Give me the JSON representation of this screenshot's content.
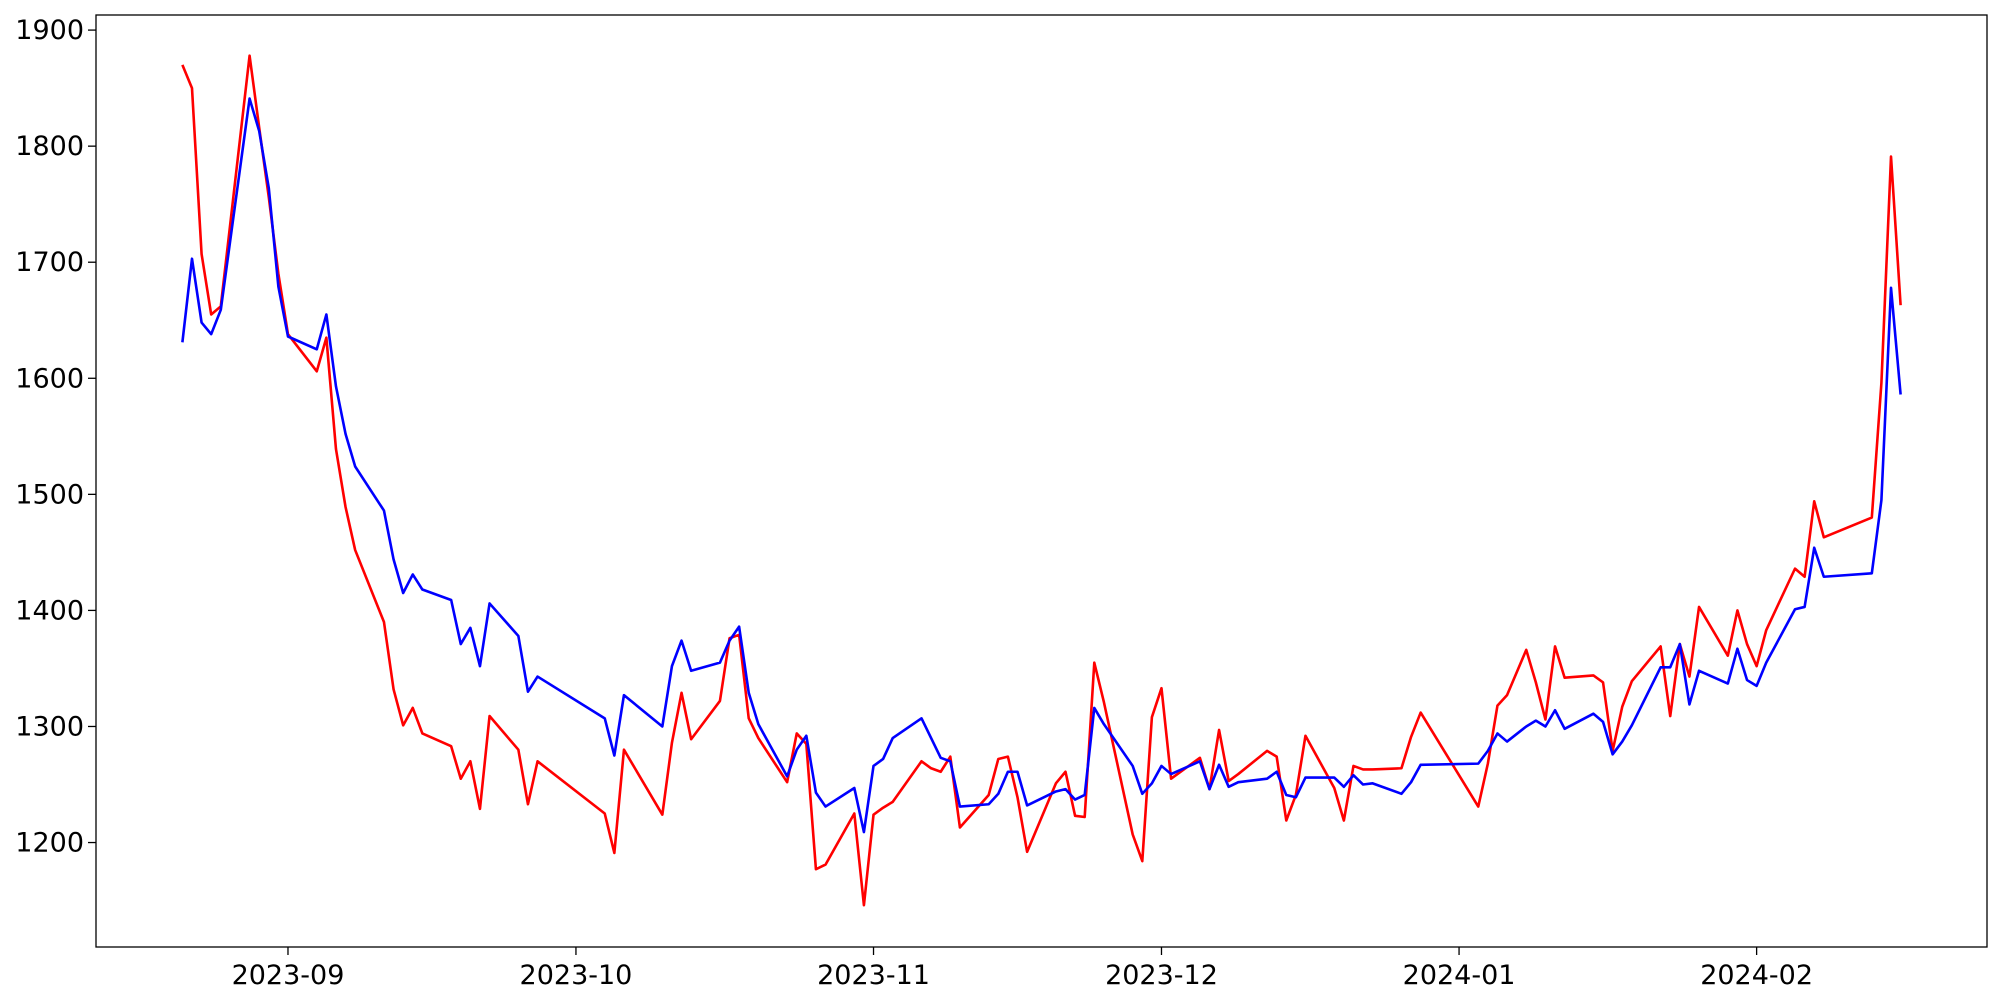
{
  "chart_data": {
    "type": "line",
    "x": [
      19590,
      19591,
      19592,
      19593,
      19594,
      19597,
      19598,
      19599,
      19600,
      19601,
      19604,
      19605,
      19606,
      19607,
      19608,
      19611,
      19612,
      19613,
      19614,
      19615,
      19618,
      19619,
      19620,
      19621,
      19622,
      19625,
      19626,
      19627,
      19634,
      19635,
      19636,
      19640,
      19641,
      19642,
      19643,
      19646,
      19647,
      19648,
      19649,
      19650,
      19653,
      19654,
      19655,
      19656,
      19657,
      19660,
      19661,
      19662,
      19663,
      19664,
      19667,
      19668,
      19669,
      19670,
      19671,
      19674,
      19675,
      19676,
      19677,
      19678,
      19681,
      19682,
      19683,
      19684,
      19685,
      19686,
      19689,
      19690,
      19691,
      19692,
      19693,
      19696,
      19697,
      19698,
      19699,
      19700,
      19703,
      19704,
      19705,
      19706,
      19707,
      19710,
      19711,
      19712,
      19713,
      19714,
      19717,
      19718,
      19719,
      19725,
      19726,
      19727,
      19728,
      19730,
      19731,
      19732,
      19733,
      19734,
      19737,
      19738,
      19739,
      19740,
      19741,
      19744,
      19745,
      19746,
      19747,
      19748,
      19751,
      19752,
      19753,
      19754,
      19755,
      19758,
      19759,
      19760,
      19761,
      19766,
      19767,
      19768,
      19769
    ],
    "series": [
      {
        "color": "#ff0000",
        "values": [
          1870,
          1850,
          1707,
          1655,
          1662,
          1878,
          1816,
          1756,
          1690,
          1638,
          1606,
          1635,
          1539,
          1489,
          1452,
          1390,
          1332,
          1301,
          1316,
          1294,
          1283,
          1255,
          1270,
          1229,
          1309,
          1280,
          1233,
          1270,
          1225,
          1191,
          1280,
          1224,
          1286,
          1329,
          1289,
          1322,
          1376,
          1379,
          1307,
          1290,
          1252,
          1294,
          1285,
          1177,
          1181,
          1225,
          1146,
          1224,
          1230,
          1235,
          1270,
          1264,
          1261,
          1274,
          1213,
          1241,
          1272,
          1274,
          1239,
          1192,
          1251,
          1261,
          1223,
          1222,
          1355,
          1321,
          1207,
          1184,
          1308,
          1333,
          1255,
          1273,
          1246,
          1297,
          1253,
          1259,
          1279,
          1274,
          1219,
          1241,
          1292,
          1247,
          1219,
          1266,
          1263,
          1263,
          1264,
          1291,
          1312,
          1231,
          1268,
          1318,
          1327,
          1366,
          1338,
          1306,
          1369,
          1342,
          1344,
          1338,
          1279,
          1317,
          1339,
          1369,
          1309,
          1371,
          1343,
          1403,
          1361,
          1400,
          1371,
          1352,
          1383,
          1436,
          1429,
          1494,
          1463,
          1480,
          1596,
          1791,
          1663
        ]
      },
      {
        "color": "#0000ff",
        "values": [
          1631,
          1703,
          1648,
          1638,
          1659,
          1841,
          1813,
          1764,
          1679,
          1636,
          1625,
          1655,
          1593,
          1552,
          1524,
          1486,
          1444,
          1415,
          1431,
          1418,
          1409,
          1371,
          1385,
          1352,
          1406,
          1378,
          1330,
          1343,
          1307,
          1275,
          1327,
          1300,
          1352,
          1374,
          1348,
          1355,
          1374,
          1386,
          1329,
          1302,
          1257,
          1280,
          1292,
          1243,
          1231,
          1247,
          1209,
          1266,
          1272,
          1290,
          1307,
          1290,
          1273,
          1270,
          1231,
          1233,
          1242,
          1261,
          1261,
          1232,
          1244,
          1246,
          1237,
          1241,
          1316,
          1302,
          1266,
          1242,
          1251,
          1266,
          1259,
          1270,
          1246,
          1267,
          1248,
          1252,
          1255,
          1261,
          1241,
          1239,
          1256,
          1256,
          1248,
          1258,
          1250,
          1251,
          1242,
          1252,
          1267,
          1268,
          1279,
          1294,
          1287,
          1300,
          1305,
          1300,
          1314,
          1298,
          1311,
          1304,
          1276,
          1287,
          1301,
          1351,
          1351,
          1371,
          1319,
          1348,
          1337,
          1367,
          1340,
          1335,
          1355,
          1401,
          1403,
          1454,
          1429,
          1432,
          1495,
          1678,
          1586
        ]
      }
    ],
    "xlim": [
      19581,
      19778
    ],
    "xticks": [
      {
        "value": 19601,
        "label": "2023-09"
      },
      {
        "value": 19631,
        "label": "2023-10"
      },
      {
        "value": 19662,
        "label": "2023-11"
      },
      {
        "value": 19692,
        "label": "2023-12"
      },
      {
        "value": 19723,
        "label": "2024-01"
      },
      {
        "value": 19754,
        "label": "2024-02"
      }
    ],
    "ylim": [
      1110,
      1913
    ],
    "yticks": [
      1200,
      1300,
      1400,
      1500,
      1600,
      1700,
      1800,
      1900
    ]
  }
}
